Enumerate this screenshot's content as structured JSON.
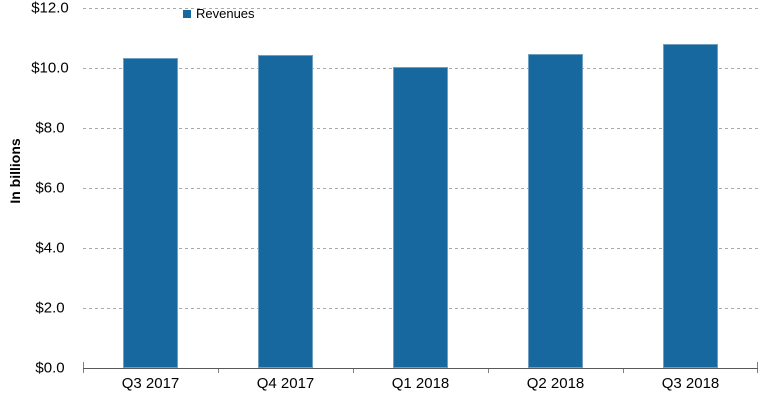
{
  "chart_data": {
    "type": "bar",
    "title": "",
    "categories": [
      "Q3 2017",
      "Q4 2017",
      "Q1 2018",
      "Q2 2018",
      "Q3 2018"
    ],
    "series": [
      {
        "name": "Revenues",
        "values": [
          10.33,
          10.43,
          10.04,
          10.47,
          10.79
        ]
      }
    ],
    "xlabel": "",
    "ylabel": "In billions",
    "ylim": [
      0,
      12
    ],
    "ytick_step": 2,
    "ytick_labels": [
      "$0.0",
      "$2.0",
      "$4.0",
      "$6.0",
      "$8.0",
      "$10.0",
      "$12.0"
    ],
    "grid": "horizontal-dashed",
    "legend_position": "top",
    "colors": {
      "bar_fill": "#17689e",
      "bar_border": "#6fa0c0",
      "gridline": "#a9a9a9",
      "axis_line": "#595959",
      "tick": "#808080",
      "text": "#000000",
      "background": "#ffffff"
    }
  }
}
